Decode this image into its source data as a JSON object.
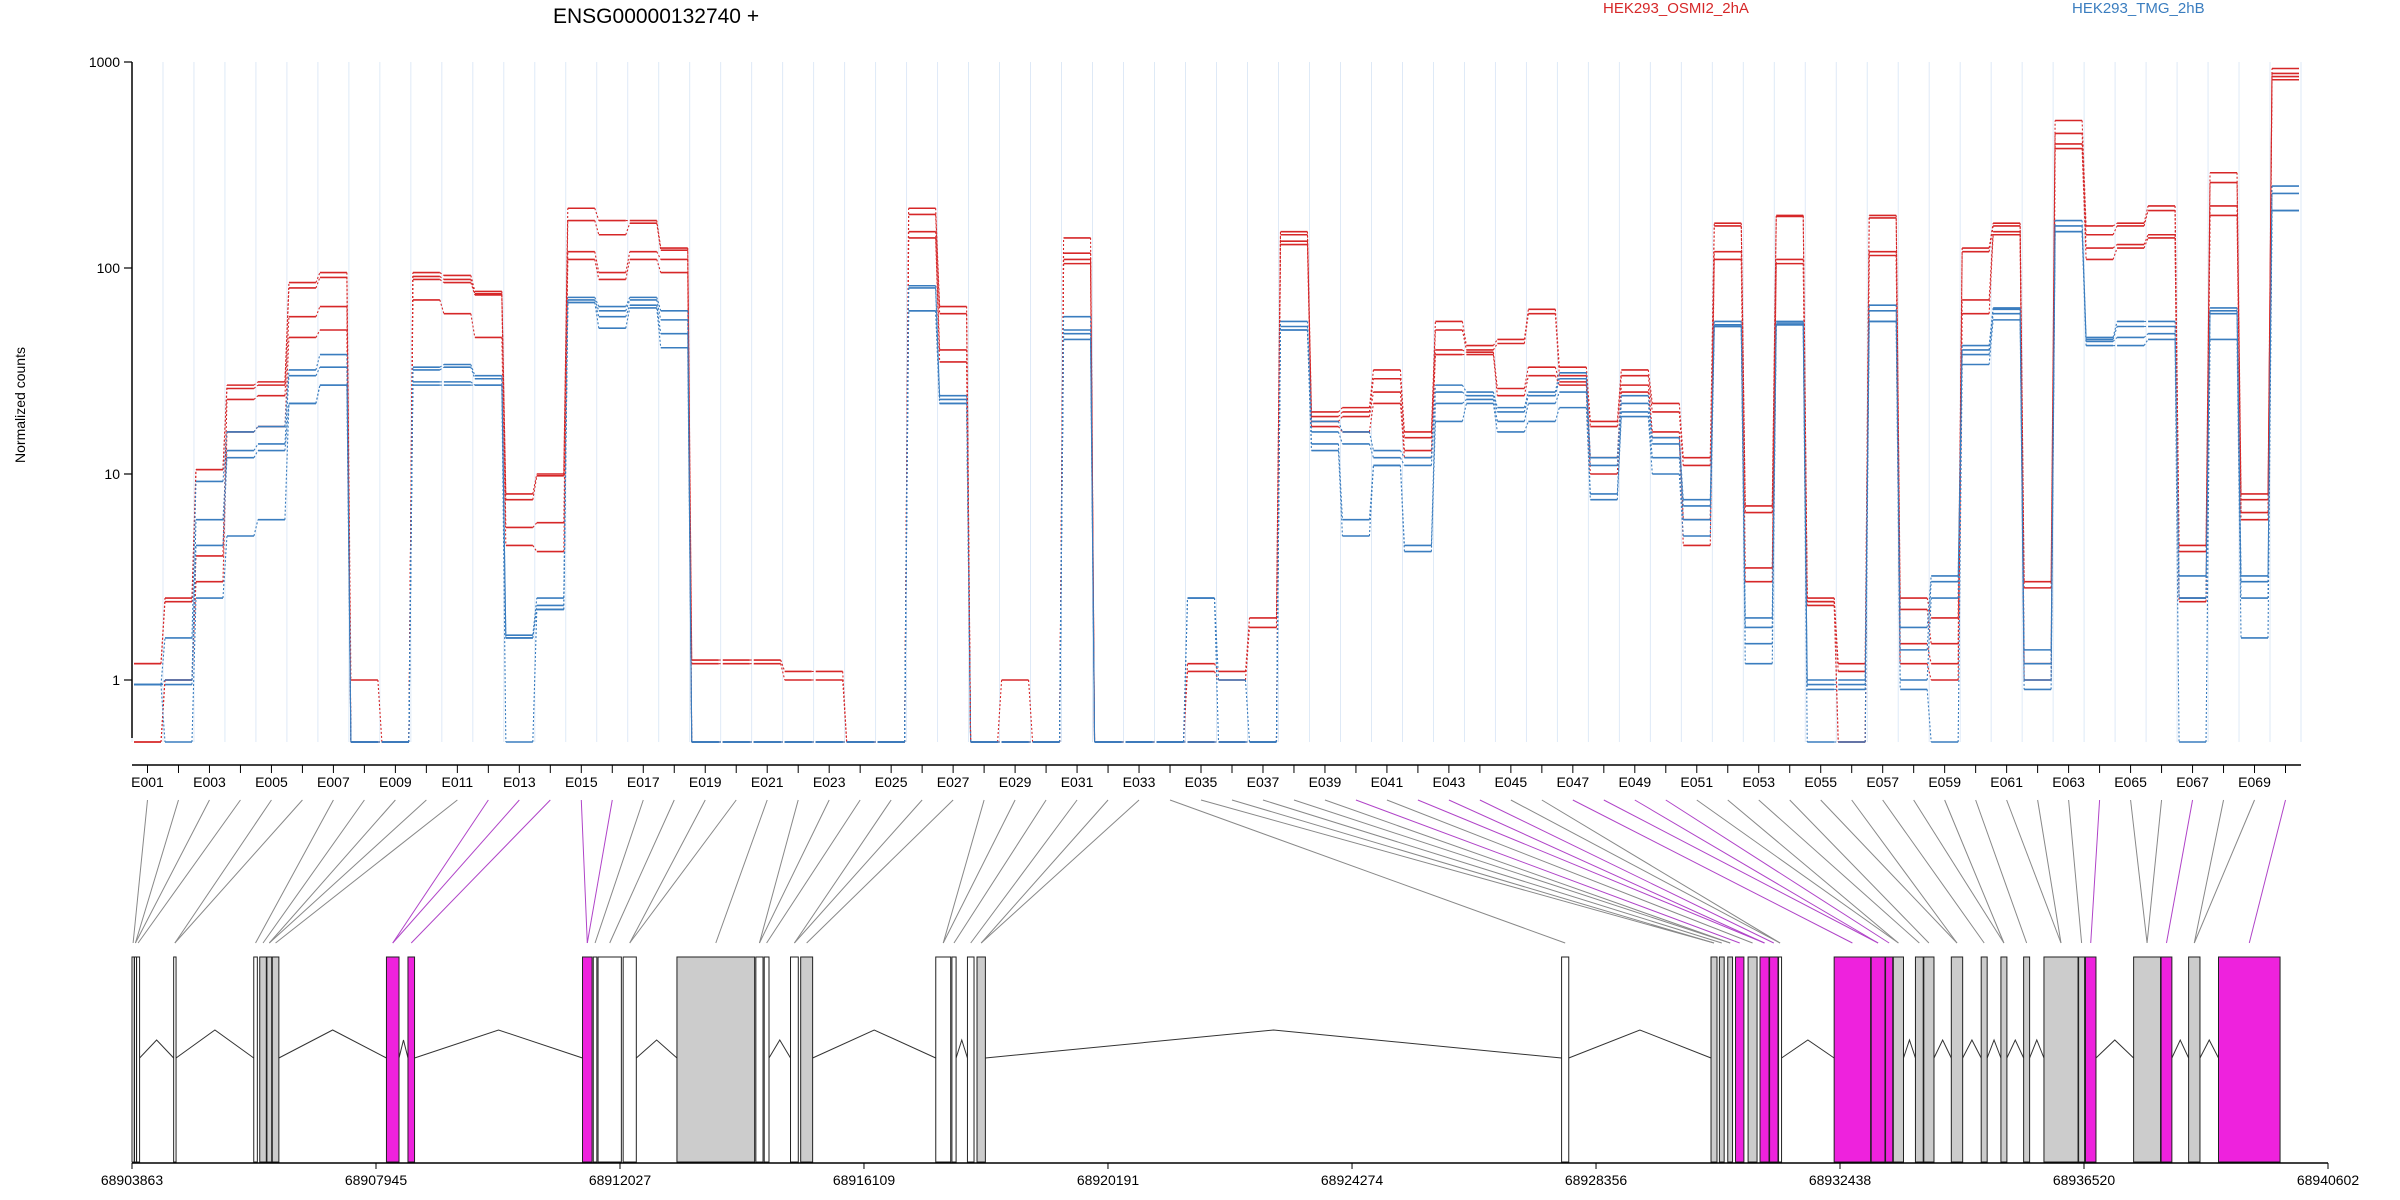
{
  "chart_data": {
    "type": "line",
    "title": "ENSG00000132740 +",
    "ylabel": "Normalized counts",
    "yscale": "log",
    "ylim": [
      0.5,
      1000
    ],
    "yticks": [
      {
        "value": 1,
        "label": "1"
      },
      {
        "value": 10,
        "label": "10"
      },
      {
        "value": 100,
        "label": "100"
      },
      {
        "value": 1000,
        "label": "1000"
      }
    ],
    "grid": "vertical-per-exon",
    "legend": [
      {
        "label": "HEK293_OSMI2_2hA",
        "color": "#d62728"
      },
      {
        "label": "HEK293_TMG_2hB",
        "color": "#3a7dbf"
      }
    ],
    "exons": [
      "E001",
      "E002",
      "E003",
      "E004",
      "E005",
      "E006",
      "E007",
      "E008",
      "E009",
      "E010",
      "E011",
      "E012",
      "E013",
      "E014",
      "E015",
      "E016",
      "E017",
      "E018",
      "E019",
      "E020",
      "E021",
      "E022",
      "E023",
      "E024",
      "E025",
      "E026",
      "E027",
      "E028",
      "E029",
      "E030",
      "E031",
      "E032",
      "E033",
      "E034",
      "E035",
      "E036",
      "E037",
      "E038",
      "E039",
      "E040",
      "E041",
      "E042",
      "E043",
      "E044",
      "E045",
      "E046",
      "E047",
      "E048",
      "E049",
      "E050",
      "E051",
      "E052",
      "E053",
      "E054",
      "E055",
      "E056",
      "E057",
      "E058",
      "E059",
      "E060",
      "E061",
      "E062",
      "E063",
      "E064",
      "E065",
      "E066",
      "E067",
      "E068",
      "E069",
      "E070"
    ],
    "exon_labels_shown": [
      "E001",
      "E003",
      "E005",
      "E007",
      "E009",
      "E011",
      "E013",
      "E015",
      "E017",
      "E019",
      "E021",
      "E023",
      "E025",
      "E027",
      "E029",
      "E031",
      "E033",
      "E035",
      "E037",
      "E039",
      "E041",
      "E043",
      "E045",
      "E047",
      "E049",
      "E051",
      "E053",
      "E055",
      "E057",
      "E059",
      "E061",
      "E063",
      "E065",
      "E067",
      "E069"
    ],
    "series": [
      {
        "group": "HEK293_OSMI2_2hA",
        "color": "#d62728",
        "values": [
          1.2,
          2.5,
          10.5,
          27,
          28,
          85,
          95,
          1,
          0.5,
          95,
          92,
          77,
          8,
          10,
          195,
          170,
          170,
          125,
          1.25,
          1.25,
          1.25,
          1.1,
          1.1,
          0.5,
          0.5,
          195,
          65,
          0.5,
          1,
          0.5,
          140,
          0.5,
          0.5,
          0.5,
          1.2,
          1.1,
          2,
          150,
          20,
          21,
          32,
          16,
          55,
          42,
          45,
          63,
          33,
          18,
          32,
          22,
          12,
          165,
          7,
          180,
          2.5,
          1.2,
          180,
          2.5,
          2,
          125,
          165,
          3,
          520,
          160,
          165,
          200,
          4.5,
          290,
          8,
          930
        ]
      },
      {
        "group": "HEK293_OSMI2_2hA",
        "color": "#d62728",
        "values": [
          1.2,
          2.4,
          10.5,
          26,
          27,
          80,
          90,
          0.5,
          0.5,
          91,
          88,
          75,
          7.5,
          9.8,
          170,
          145,
          165,
          122,
          1.2,
          1.2,
          1.2,
          1.0,
          1.0,
          0.5,
          0.5,
          182,
          60,
          0.5,
          0.5,
          0.5,
          118,
          0.5,
          0.5,
          0.5,
          1.1,
          1.0,
          1.8,
          145,
          19,
          20,
          29,
          15,
          50,
          40,
          43,
          60,
          30,
          17,
          30,
          20,
          11,
          160,
          6.5,
          178,
          2.4,
          1.1,
          175,
          2.2,
          1.5,
          120,
          160,
          2.8,
          450,
          145,
          160,
          190,
          4.2,
          260,
          7.5,
          880
        ]
      },
      {
        "group": "HEK293_OSMI2_2hA",
        "color": "#d62728",
        "values": [
          0.5,
          1.0,
          4.0,
          23,
          24,
          58,
          65,
          0.5,
          0.5,
          88,
          85,
          74,
          5.5,
          5.8,
          120,
          95,
          120,
          110,
          0.5,
          0.5,
          0.5,
          0.5,
          0.5,
          0.5,
          0.5,
          150,
          40,
          0.5,
          0.5,
          0.5,
          110,
          0.5,
          0.5,
          0.5,
          0.5,
          0.5,
          0.5,
          135,
          18,
          19,
          25,
          13,
          40,
          39,
          26,
          33,
          28,
          12,
          27,
          16,
          6,
          120,
          3.5,
          110,
          2.4,
          0.5,
          120,
          1.5,
          1.2,
          70,
          150,
          1.2,
          400,
          125,
          130,
          145,
          2.5,
          200,
          6.5,
          850
        ]
      },
      {
        "group": "HEK293_OSMI2_2hA",
        "color": "#d62728",
        "values": [
          0.5,
          1.0,
          3.0,
          16,
          17,
          46,
          50,
          0.5,
          0.5,
          70,
          60,
          46,
          4.5,
          4.2,
          110,
          88,
          110,
          95,
          0.5,
          0.5,
          0.5,
          0.5,
          0.5,
          0.5,
          0.5,
          140,
          35,
          0.5,
          0.5,
          0.5,
          105,
          0.5,
          0.5,
          0.5,
          0.5,
          0.5,
          0.5,
          130,
          17,
          16,
          22,
          12,
          38,
          38,
          24,
          30,
          27,
          10,
          25,
          15,
          4.5,
          110,
          3.0,
          105,
          2.3,
          0.5,
          115,
          1.2,
          1.0,
          60,
          145,
          1.0,
          380,
          110,
          125,
          140,
          2.4,
          180,
          6.0,
          820
        ]
      },
      {
        "group": "HEK293_TMG_2hB",
        "color": "#3a7dbf",
        "values": [
          0.95,
          1.6,
          9.2,
          16,
          17,
          32,
          38,
          0.5,
          0.5,
          33,
          34,
          30,
          1.65,
          2.5,
          72,
          65,
          72,
          62,
          0.5,
          0.5,
          0.5,
          0.5,
          0.5,
          0.5,
          0.5,
          82,
          24,
          0.5,
          0.5,
          0.5,
          58,
          0.5,
          0.5,
          0.5,
          2.5,
          1.0,
          0.5,
          55,
          18,
          16,
          13,
          12,
          27,
          25,
          21,
          25,
          31,
          12,
          24,
          15,
          7.5,
          55,
          2.0,
          55,
          1.0,
          1.0,
          66,
          1.8,
          3.2,
          42,
          64,
          1.4,
          170,
          46,
          55,
          55,
          3.2,
          64,
          3.2,
          250
        ]
      },
      {
        "group": "HEK293_TMG_2hB",
        "color": "#3a7dbf",
        "values": [
          0.95,
          1.0,
          6.0,
          13,
          14,
          30,
          33,
          0.5,
          0.5,
          32,
          33,
          29,
          1.6,
          2.3,
          70,
          62,
          70,
          56,
          0.5,
          0.5,
          0.5,
          0.5,
          0.5,
          0.5,
          0.5,
          80,
          23,
          0.5,
          0.5,
          0.5,
          50,
          0.5,
          0.5,
          0.5,
          2.5,
          0.5,
          0.5,
          52,
          16,
          14,
          12,
          11,
          25,
          24,
          20,
          24,
          29,
          11,
          22,
          14,
          7.0,
          53,
          1.8,
          54,
          0.95,
          0.95,
          62,
          1.4,
          3.0,
          40,
          63,
          1.2,
          160,
          45,
          52,
          52,
          2.5,
          62,
          3.0,
          230
        ]
      },
      {
        "group": "HEK293_TMG_2hB",
        "color": "#3a7dbf",
        "values": [
          0.95,
          0.95,
          4.5,
          12,
          13,
          22,
          27,
          0.5,
          0.5,
          28,
          28,
          27,
          1.6,
          2.2,
          68,
          58,
          66,
          48,
          0.5,
          0.5,
          0.5,
          0.5,
          0.5,
          0.5,
          0.5,
          62,
          22,
          0.5,
          0.5,
          0.5,
          48,
          0.5,
          0.5,
          0.5,
          0.5,
          0.5,
          0.5,
          50,
          14,
          6,
          11,
          4.5,
          22,
          23,
          18,
          22,
          25,
          8,
          20,
          12,
          6.0,
          52,
          1.5,
          53,
          0.9,
          0.9,
          55,
          1.0,
          2.5,
          38,
          60,
          1.0,
          150,
          44,
          46,
          48,
          2.5,
          60,
          2.5,
          190
        ]
      },
      {
        "group": "HEK293_TMG_2hB",
        "color": "#3a7dbf",
        "values": [
          0.95,
          0.5,
          2.5,
          5,
          6,
          22,
          27,
          0.5,
          0.5,
          27,
          27,
          27,
          0.5,
          2.2,
          68,
          51,
          64,
          41,
          0.5,
          0.5,
          0.5,
          0.5,
          0.5,
          0.5,
          0.5,
          62,
          22,
          0.5,
          0.5,
          0.5,
          45,
          0.5,
          0.5,
          0.5,
          0.5,
          0.5,
          0.5,
          50,
          13,
          5,
          11,
          4.2,
          18,
          22,
          16,
          18,
          21,
          7.5,
          19,
          10,
          5.0,
          52,
          1.2,
          53,
          0.5,
          0.5,
          55,
          0.9,
          0.5,
          34,
          56,
          0.9,
          150,
          42,
          42,
          45,
          0.5,
          45,
          1.6,
          190
        ]
      }
    ],
    "gene_model": {
      "genomic_ticks": [
        "68903863",
        "68907945",
        "68912027",
        "68916109",
        "68920191",
        "68924274",
        "68928356",
        "68932438",
        "68936520",
        "68940602"
      ],
      "range": [
        68903863,
        68940602
      ],
      "boxes": [
        {
          "start": 68903863,
          "end": 68903900,
          "color": "#ffffff"
        },
        {
          "start": 68903905,
          "end": 68903935,
          "color": "#ffffff"
        },
        {
          "start": 68903940,
          "end": 68903990,
          "color": "#ffffff"
        },
        {
          "start": 68904560,
          "end": 68904600,
          "color": "#ffffff"
        },
        {
          "start": 68905900,
          "end": 68905960,
          "color": "#ffffff"
        },
        {
          "start": 68906000,
          "end": 68906110,
          "color": "#cccccc"
        },
        {
          "start": 68906120,
          "end": 68906200,
          "color": "#cccccc"
        },
        {
          "start": 68906210,
          "end": 68906320,
          "color": "#cccccc"
        },
        {
          "start": 68908120,
          "end": 68908330,
          "color": "#ee22dd"
        },
        {
          "start": 68908480,
          "end": 68908590,
          "color": "#ee22dd"
        },
        {
          "start": 68911400,
          "end": 68911560,
          "color": "#ee22dd"
        },
        {
          "start": 68911580,
          "end": 68911640,
          "color": "#ffffff"
        },
        {
          "start": 68911660,
          "end": 68912050,
          "color": "#ffffff"
        },
        {
          "start": 68912080,
          "end": 68912300,
          "color": "#ffffff"
        },
        {
          "start": 68912980,
          "end": 68914280,
          "color": "#cccccc"
        },
        {
          "start": 68914300,
          "end": 68914420,
          "color": "#ffffff"
        },
        {
          "start": 68914440,
          "end": 68914520,
          "color": "#ffffff"
        },
        {
          "start": 68914880,
          "end": 68915010,
          "color": "#ffffff"
        },
        {
          "start": 68915050,
          "end": 68915250,
          "color": "#cccccc"
        },
        {
          "start": 68917310,
          "end": 68917560,
          "color": "#ffffff"
        },
        {
          "start": 68917580,
          "end": 68917650,
          "color": "#ffffff"
        },
        {
          "start": 68917840,
          "end": 68917950,
          "color": "#ffffff"
        },
        {
          "start": 68918000,
          "end": 68918140,
          "color": "#cccccc"
        },
        {
          "start": 68927780,
          "end": 68927900,
          "color": "#ffffff"
        },
        {
          "start": 68930280,
          "end": 68930380,
          "color": "#cccccc"
        },
        {
          "start": 68930420,
          "end": 68930500,
          "color": "#cccccc"
        },
        {
          "start": 68930560,
          "end": 68930640,
          "color": "#cccccc"
        },
        {
          "start": 68930690,
          "end": 68930830,
          "color": "#ee22dd"
        },
        {
          "start": 68930900,
          "end": 68931050,
          "color": "#cccccc"
        },
        {
          "start": 68931100,
          "end": 68931250,
          "color": "#ee22dd"
        },
        {
          "start": 68931260,
          "end": 68931400,
          "color": "#ee22dd"
        },
        {
          "start": 68931410,
          "end": 68931460,
          "color": "#ffffff"
        },
        {
          "start": 68932340,
          "end": 68932950,
          "color": "#ee22dd"
        },
        {
          "start": 68932960,
          "end": 68933190,
          "color": "#ee22dd"
        },
        {
          "start": 68933200,
          "end": 68933320,
          "color": "#ee22dd"
        },
        {
          "start": 68933330,
          "end": 68933500,
          "color": "#cccccc"
        },
        {
          "start": 68933700,
          "end": 68933830,
          "color": "#cccccc"
        },
        {
          "start": 68933840,
          "end": 68934010,
          "color": "#cccccc"
        },
        {
          "start": 68934300,
          "end": 68934490,
          "color": "#cccccc"
        },
        {
          "start": 68934800,
          "end": 68934900,
          "color": "#cccccc"
        },
        {
          "start": 68935130,
          "end": 68935230,
          "color": "#cccccc"
        },
        {
          "start": 68935510,
          "end": 68935610,
          "color": "#cccccc"
        },
        {
          "start": 68935850,
          "end": 68936420,
          "color": "#cccccc"
        },
        {
          "start": 68936430,
          "end": 68936530,
          "color": "#cccccc"
        },
        {
          "start": 68936545,
          "end": 68936720,
          "color": "#ee22dd"
        },
        {
          "start": 68937350,
          "end": 68937800,
          "color": "#cccccc"
        },
        {
          "start": 68937810,
          "end": 68937990,
          "color": "#ee22dd"
        },
        {
          "start": 68938270,
          "end": 68938460,
          "color": "#cccccc"
        },
        {
          "start": 68938770,
          "end": 68939800,
          "color": "#ee22dd"
        }
      ]
    }
  }
}
